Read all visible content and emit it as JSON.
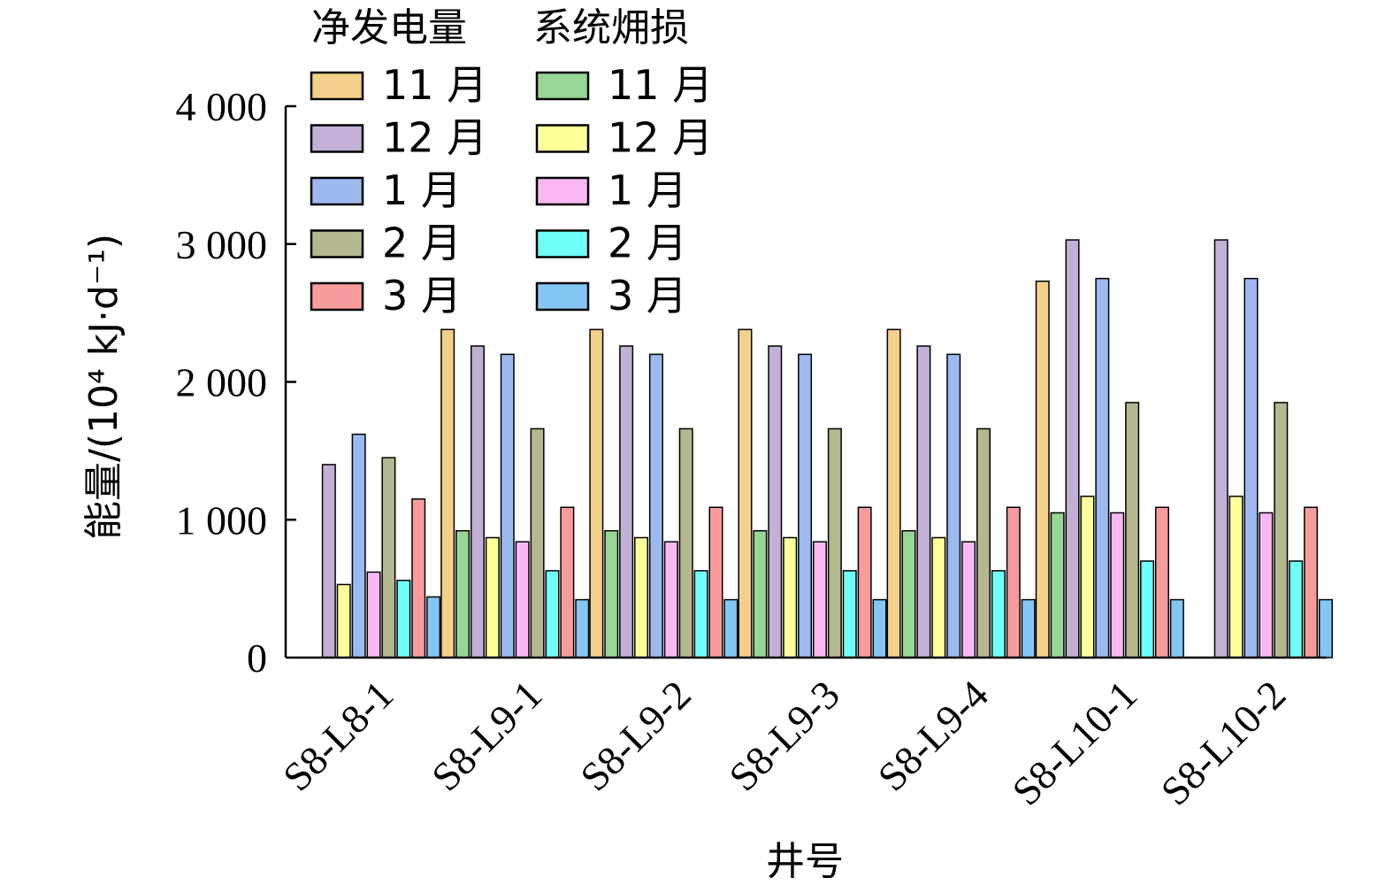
{
  "chart_data": {
    "type": "bar",
    "ylabel": "能量/(10⁴ kJ·d⁻¹)",
    "xlabel": "井号",
    "ylim": [
      0,
      4000
    ],
    "yticks": [
      {
        "value": 0,
        "label": "0"
      },
      {
        "value": 1000,
        "label": "1 000"
      },
      {
        "value": 2000,
        "label": "2 000"
      },
      {
        "value": 3000,
        "label": "3 000"
      },
      {
        "value": 4000,
        "label": "4 000"
      }
    ],
    "categories": [
      "S8-L8-1",
      "S8-L9-1",
      "S8-L9-2",
      "S8-L9-3",
      "S8-L9-4",
      "S8-L10-1",
      "S8-L10-2"
    ],
    "legend": {
      "placement": "top-left",
      "group_titles": [
        "净发电量",
        "系统㶲损"
      ]
    },
    "series": [
      {
        "group": "净发电量",
        "name": "11 月",
        "color": "#f5d08a",
        "values": [
          null,
          2380,
          2380,
          2380,
          2380,
          2730,
          null
        ]
      },
      {
        "group": "系统㶲损",
        "name": "11 月",
        "color": "#97d695",
        "values": [
          null,
          920,
          920,
          920,
          920,
          1050,
          null
        ]
      },
      {
        "group": "净发电量",
        "name": "12 月",
        "color": "#c2b0d6",
        "values": [
          1400,
          2260,
          2260,
          2260,
          2260,
          3030,
          3030
        ]
      },
      {
        "group": "系统㶲损",
        "name": "12 月",
        "color": "#ffff99",
        "values": [
          530,
          870,
          870,
          870,
          870,
          1170,
          1170
        ]
      },
      {
        "group": "净发电量",
        "name": "1 月",
        "color": "#9cb9f0",
        "values": [
          1620,
          2200,
          2200,
          2200,
          2200,
          2750,
          2750
        ]
      },
      {
        "group": "系统㶲损",
        "name": "1 月",
        "color": "#f9b8f4",
        "values": [
          620,
          840,
          840,
          840,
          840,
          1050,
          1050
        ]
      },
      {
        "group": "净发电量",
        "name": "2 月",
        "color": "#b5b88f",
        "values": [
          1450,
          1660,
          1660,
          1660,
          1660,
          1850,
          1850
        ]
      },
      {
        "group": "系统㶲损",
        "name": "2 月",
        "color": "#6ffff8",
        "values": [
          560,
          630,
          630,
          630,
          630,
          700,
          700
        ]
      },
      {
        "group": "净发电量",
        "name": "3 月",
        "color": "#f79c9c",
        "values": [
          1150,
          1090,
          1090,
          1090,
          1090,
          1090,
          1090
        ]
      },
      {
        "group": "系统㶲损",
        "name": "3 月",
        "color": "#84c7f5",
        "values": [
          440,
          420,
          420,
          420,
          420,
          420,
          420
        ]
      }
    ]
  }
}
